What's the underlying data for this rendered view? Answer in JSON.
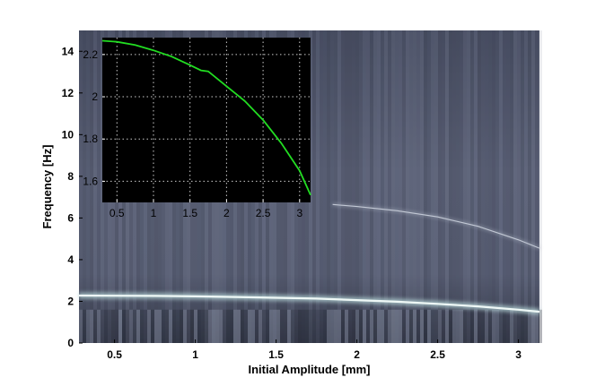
{
  "chart_data": [
    {
      "type": "heatmap",
      "xlabel": "Initial Amplitude [mm]",
      "ylabel": "Frequency [Hz]",
      "xlim": [
        0.28,
        3.13
      ],
      "ylim": [
        0,
        15
      ],
      "xticks": [
        "0.5",
        "1",
        "1.5",
        "2",
        "2.5",
        "3"
      ],
      "yticks": [
        "0",
        "2",
        "4",
        "6",
        "8",
        "10",
        "12",
        "14"
      ],
      "grid": false,
      "colormap": "bone",
      "series": [
        {
          "x": [
            0.28,
            0.5,
            0.75,
            1.0,
            1.25,
            1.5,
            1.75,
            2.0,
            2.25,
            2.5,
            2.75,
            3.0,
            3.13
          ],
          "y": [
            2.28,
            2.27,
            2.26,
            2.24,
            2.21,
            2.17,
            2.13,
            2.06,
            1.98,
            1.88,
            1.76,
            1.6,
            1.5
          ]
        },
        {
          "x": [
            1.85,
            2.0,
            2.25,
            2.5,
            2.75,
            3.0,
            3.13
          ],
          "y": [
            6.65,
            6.55,
            6.35,
            6.05,
            5.6,
            4.95,
            4.55
          ]
        }
      ],
      "colors": {
        "background": "#5b6178",
        "ridge": "#eef8f6",
        "harmonic": "#a9b1c0"
      }
    },
    {
      "type": "line",
      "xlim": [
        0.3,
        3.15
      ],
      "ylim": [
        1.5,
        2.28
      ],
      "xticks": [
        "0.5",
        "1",
        "1.5",
        "2",
        "2.5",
        "3"
      ],
      "yticks": [
        "1.6",
        "1.8",
        "2",
        "2.2"
      ],
      "grid": true,
      "series": [
        {
          "x": [
            0.3,
            0.5,
            0.75,
            1.0,
            1.25,
            1.5,
            1.65,
            1.75,
            2.0,
            2.25,
            2.5,
            2.75,
            3.0,
            3.15
          ],
          "y": [
            2.265,
            2.26,
            2.245,
            2.22,
            2.19,
            2.15,
            2.125,
            2.12,
            2.05,
            1.98,
            1.89,
            1.78,
            1.65,
            1.535
          ]
        }
      ],
      "colors": {
        "background": "#000000",
        "line": "#22dd22",
        "grid": "#cccccc"
      }
    }
  ]
}
